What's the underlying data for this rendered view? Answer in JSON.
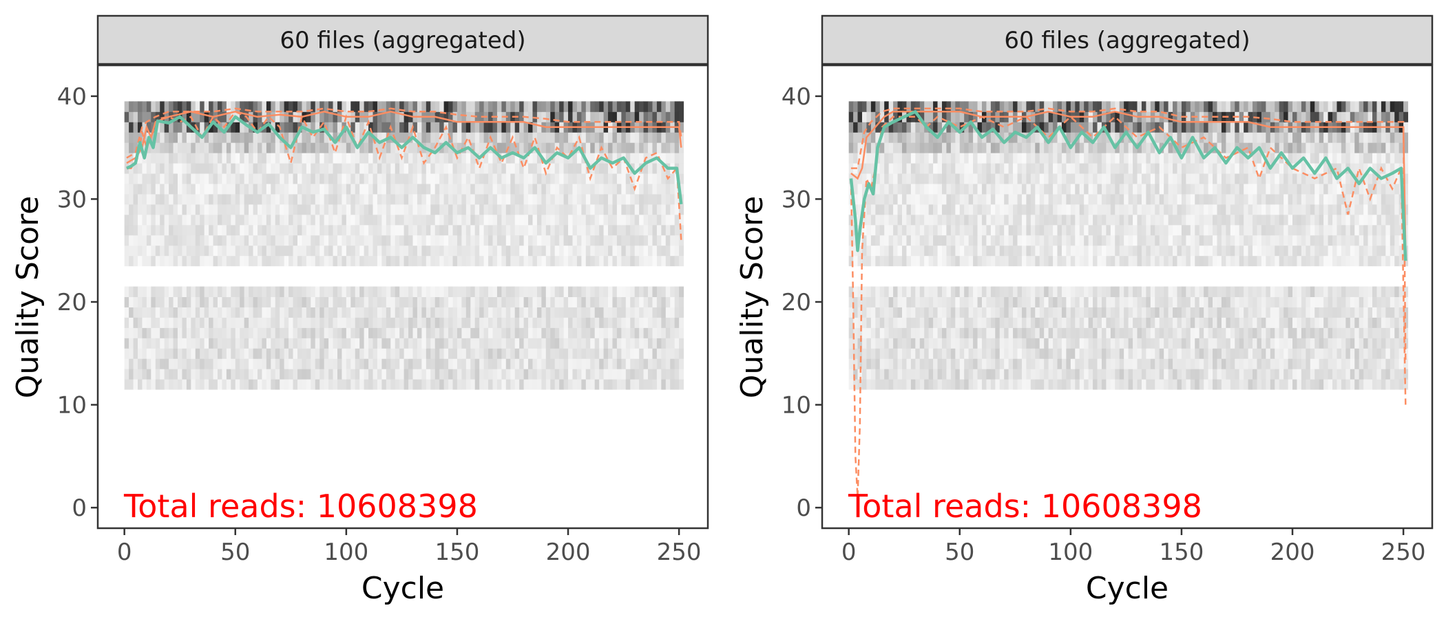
{
  "figure": {
    "background": "#ffffff",
    "strip_fill": "#d9d9d9",
    "frame_color": "#333333",
    "mean_color": "#66c2a5",
    "quantile_color": "#fc8d62",
    "annotation_color": "#ff0000"
  },
  "chart_data": [
    {
      "type": "line",
      "facet_label": "60 files (aggregated)",
      "xlabel": "Cycle",
      "ylabel": "Quality Score",
      "xlim": [
        -12,
        263
      ],
      "ylim": [
        -2,
        43
      ],
      "x_ticks": [
        0,
        50,
        100,
        150,
        200,
        250
      ],
      "y_ticks": [
        0,
        10,
        20,
        30,
        40
      ],
      "grid": false,
      "annotation": "Total reads: 10608398",
      "background_heatmap": {
        "x_range": [
          1,
          251
        ],
        "description_value": "density tiles",
        "bands": [
          [
            23.5,
            39.5
          ],
          [
            11.5,
            21.5
          ]
        ]
      },
      "mean_profile": [
        [
          1,
          33
        ],
        [
          3,
          33.2
        ],
        [
          5,
          33.5
        ],
        [
          7,
          35.5
        ],
        [
          9,
          34
        ],
        [
          11,
          36
        ],
        [
          13,
          35
        ],
        [
          15,
          37.6
        ],
        [
          20,
          37.4
        ],
        [
          25,
          38
        ],
        [
          30,
          37
        ],
        [
          35,
          36
        ],
        [
          40,
          37.5
        ],
        [
          45,
          36.5
        ],
        [
          50,
          38
        ],
        [
          55,
          37.2
        ],
        [
          60,
          36.5
        ],
        [
          65,
          37.3
        ],
        [
          70,
          36
        ],
        [
          75,
          35
        ],
        [
          80,
          37
        ],
        [
          85,
          36.5
        ],
        [
          90,
          36.8
        ],
        [
          95,
          35.5
        ],
        [
          100,
          37
        ],
        [
          105,
          35
        ],
        [
          110,
          36.5
        ],
        [
          115,
          35.5
        ],
        [
          120,
          36
        ],
        [
          125,
          35
        ],
        [
          130,
          36
        ],
        [
          135,
          35
        ],
        [
          140,
          34.5
        ],
        [
          145,
          35.5
        ],
        [
          150,
          34.5
        ],
        [
          155,
          35
        ],
        [
          160,
          34
        ],
        [
          165,
          35
        ],
        [
          170,
          34
        ],
        [
          175,
          34.5
        ],
        [
          180,
          34
        ],
        [
          185,
          35
        ],
        [
          190,
          33.5
        ],
        [
          195,
          34.5
        ],
        [
          200,
          34
        ],
        [
          205,
          35
        ],
        [
          210,
          33
        ],
        [
          215,
          34
        ],
        [
          220,
          33.5
        ],
        [
          225,
          34
        ],
        [
          230,
          32.5
        ],
        [
          235,
          33.5
        ],
        [
          240,
          34
        ],
        [
          245,
          33
        ],
        [
          249,
          33
        ],
        [
          251,
          29.5
        ]
      ],
      "median_profile": [
        [
          1,
          33.5
        ],
        [
          5,
          34
        ],
        [
          8,
          35
        ],
        [
          10,
          37
        ],
        [
          12,
          36
        ],
        [
          14,
          37.5
        ],
        [
          20,
          38
        ],
        [
          30,
          38.5
        ],
        [
          40,
          38
        ],
        [
          50,
          38.5
        ],
        [
          60,
          38
        ],
        [
          70,
          38.2
        ],
        [
          80,
          38
        ],
        [
          90,
          38.5
        ],
        [
          100,
          38
        ],
        [
          110,
          38
        ],
        [
          120,
          38.5
        ],
        [
          130,
          38
        ],
        [
          140,
          38
        ],
        [
          150,
          37.5
        ],
        [
          160,
          37.5
        ],
        [
          170,
          37.5
        ],
        [
          180,
          37.5
        ],
        [
          190,
          37
        ],
        [
          200,
          37
        ],
        [
          210,
          37
        ],
        [
          220,
          37
        ],
        [
          230,
          37
        ],
        [
          240,
          37
        ],
        [
          250,
          37
        ],
        [
          251,
          35
        ]
      ],
      "quartile_lower_profile": [
        [
          1,
          33
        ],
        [
          3,
          33
        ],
        [
          6,
          34
        ],
        [
          8,
          36.5
        ],
        [
          10,
          35
        ],
        [
          12,
          36
        ],
        [
          15,
          37.8
        ],
        [
          20,
          38
        ],
        [
          25,
          37.5
        ],
        [
          30,
          38
        ],
        [
          35,
          36
        ],
        [
          40,
          38
        ],
        [
          45,
          37
        ],
        [
          50,
          38.5
        ],
        [
          55,
          38
        ],
        [
          60,
          36.5
        ],
        [
          65,
          38
        ],
        [
          70,
          37
        ],
        [
          75,
          33.5
        ],
        [
          80,
          38
        ],
        [
          85,
          36
        ],
        [
          90,
          37.5
        ],
        [
          95,
          34.5
        ],
        [
          100,
          38
        ],
        [
          105,
          35
        ],
        [
          110,
          37.5
        ],
        [
          115,
          34
        ],
        [
          120,
          37
        ],
        [
          125,
          34
        ],
        [
          130,
          37
        ],
        [
          135,
          33.5
        ],
        [
          140,
          35
        ],
        [
          145,
          37
        ],
        [
          150,
          34
        ],
        [
          155,
          36
        ],
        [
          160,
          33
        ],
        [
          165,
          36
        ],
        [
          170,
          33.5
        ],
        [
          175,
          36
        ],
        [
          180,
          33
        ],
        [
          185,
          36
        ],
        [
          190,
          32.5
        ],
        [
          195,
          35
        ],
        [
          200,
          34
        ],
        [
          205,
          36
        ],
        [
          210,
          32
        ],
        [
          215,
          35
        ],
        [
          220,
          33
        ],
        [
          225,
          34
        ],
        [
          230,
          31
        ],
        [
          235,
          34
        ],
        [
          240,
          34.5
        ],
        [
          245,
          32
        ],
        [
          249,
          33
        ],
        [
          251,
          26
        ]
      ],
      "quartile_upper_profile": [
        [
          1,
          34
        ],
        [
          5,
          34.5
        ],
        [
          8,
          37
        ],
        [
          10,
          37.5
        ],
        [
          14,
          38
        ],
        [
          20,
          38.5
        ],
        [
          30,
          38.5
        ],
        [
          40,
          38.5
        ],
        [
          50,
          38.8
        ],
        [
          60,
          38.5
        ],
        [
          70,
          38.5
        ],
        [
          80,
          38.5
        ],
        [
          90,
          38.8
        ],
        [
          100,
          38.5
        ],
        [
          110,
          38.5
        ],
        [
          120,
          38.8
        ],
        [
          130,
          38.5
        ],
        [
          140,
          38.5
        ],
        [
          150,
          38.2
        ],
        [
          160,
          38
        ],
        [
          170,
          38
        ],
        [
          180,
          38
        ],
        [
          190,
          37.8
        ],
        [
          200,
          37.5
        ],
        [
          210,
          37.5
        ],
        [
          220,
          37.5
        ],
        [
          230,
          37.5
        ],
        [
          240,
          37.5
        ],
        [
          250,
          37.5
        ],
        [
          251,
          36
        ]
      ]
    },
    {
      "type": "line",
      "facet_label": "60 files (aggregated)",
      "xlabel": "Cycle",
      "ylabel": "Quality Score",
      "xlim": [
        -12,
        263
      ],
      "ylim": [
        -2,
        43
      ],
      "x_ticks": [
        0,
        50,
        100,
        150,
        200,
        250
      ],
      "y_ticks": [
        0,
        10,
        20,
        30,
        40
      ],
      "grid": false,
      "annotation": "Total reads: 10608398",
      "background_heatmap": {
        "x_range": [
          1,
          251
        ],
        "bands": [
          [
            23.5,
            39.5
          ],
          [
            11.5,
            21.5
          ]
        ]
      },
      "mean_profile": [
        [
          1,
          32
        ],
        [
          3,
          28
        ],
        [
          4,
          25
        ],
        [
          5,
          27
        ],
        [
          7,
          30
        ],
        [
          9,
          31.5
        ],
        [
          11,
          30.5
        ],
        [
          13,
          35
        ],
        [
          16,
          37
        ],
        [
          20,
          37.5
        ],
        [
          25,
          38
        ],
        [
          30,
          38.5
        ],
        [
          35,
          37
        ],
        [
          40,
          36
        ],
        [
          45,
          37.5
        ],
        [
          50,
          36.5
        ],
        [
          55,
          37.5
        ],
        [
          60,
          36
        ],
        [
          65,
          36.8
        ],
        [
          70,
          35.5
        ],
        [
          75,
          36.5
        ],
        [
          80,
          36
        ],
        [
          85,
          37
        ],
        [
          90,
          35.5
        ],
        [
          95,
          37
        ],
        [
          100,
          35
        ],
        [
          105,
          36.5
        ],
        [
          110,
          35.5
        ],
        [
          115,
          37
        ],
        [
          120,
          35
        ],
        [
          125,
          36.5
        ],
        [
          130,
          35
        ],
        [
          135,
          36.5
        ],
        [
          140,
          34.5
        ],
        [
          145,
          36
        ],
        [
          150,
          34
        ],
        [
          155,
          36
        ],
        [
          160,
          34
        ],
        [
          165,
          35
        ],
        [
          170,
          33.5
        ],
        [
          175,
          35
        ],
        [
          180,
          34
        ],
        [
          185,
          35
        ],
        [
          190,
          33
        ],
        [
          195,
          34.5
        ],
        [
          200,
          33
        ],
        [
          205,
          34
        ],
        [
          210,
          32.5
        ],
        [
          215,
          34
        ],
        [
          220,
          32
        ],
        [
          225,
          33
        ],
        [
          230,
          31.5
        ],
        [
          235,
          33
        ],
        [
          240,
          32
        ],
        [
          245,
          32.5
        ],
        [
          249,
          33
        ],
        [
          251,
          24
        ]
      ],
      "median_profile": [
        [
          1,
          32.5
        ],
        [
          4,
          32
        ],
        [
          6,
          33
        ],
        [
          8,
          36
        ],
        [
          12,
          37
        ],
        [
          16,
          38
        ],
        [
          20,
          38.5
        ],
        [
          30,
          38.5
        ],
        [
          40,
          38.5
        ],
        [
          50,
          38.5
        ],
        [
          60,
          38
        ],
        [
          70,
          38
        ],
        [
          80,
          38
        ],
        [
          90,
          38.5
        ],
        [
          100,
          38
        ],
        [
          110,
          38
        ],
        [
          120,
          38.5
        ],
        [
          130,
          38
        ],
        [
          140,
          38
        ],
        [
          150,
          37.5
        ],
        [
          160,
          37.5
        ],
        [
          170,
          37.5
        ],
        [
          180,
          37.5
        ],
        [
          190,
          37
        ],
        [
          200,
          37
        ],
        [
          210,
          37
        ],
        [
          220,
          37
        ],
        [
          230,
          37
        ],
        [
          240,
          37
        ],
        [
          250,
          37
        ],
        [
          251,
          25
        ]
      ],
      "quartile_lower_profile": [
        [
          1,
          32
        ],
        [
          2,
          20
        ],
        [
          3,
          5
        ],
        [
          4,
          1
        ],
        [
          5,
          8
        ],
        [
          6,
          25
        ],
        [
          8,
          32
        ],
        [
          10,
          31
        ],
        [
          12,
          33
        ],
        [
          15,
          37
        ],
        [
          20,
          38
        ],
        [
          30,
          38
        ],
        [
          35,
          37
        ],
        [
          40,
          38
        ],
        [
          50,
          37
        ],
        [
          60,
          38
        ],
        [
          70,
          37
        ],
        [
          80,
          38
        ],
        [
          90,
          36
        ],
        [
          100,
          38
        ],
        [
          110,
          36
        ],
        [
          120,
          38
        ],
        [
          130,
          36
        ],
        [
          140,
          37
        ],
        [
          150,
          35
        ],
        [
          160,
          36
        ],
        [
          170,
          34
        ],
        [
          180,
          35
        ],
        [
          185,
          32
        ],
        [
          190,
          35
        ],
        [
          200,
          33
        ],
        [
          210,
          32
        ],
        [
          220,
          33
        ],
        [
          225,
          28.5
        ],
        [
          230,
          33
        ],
        [
          235,
          30
        ],
        [
          240,
          33
        ],
        [
          245,
          31
        ],
        [
          249,
          33
        ],
        [
          251,
          10
        ]
      ],
      "quartile_upper_profile": [
        [
          1,
          33
        ],
        [
          4,
          33
        ],
        [
          7,
          36.5
        ],
        [
          10,
          37.5
        ],
        [
          15,
          38.5
        ],
        [
          20,
          38.8
        ],
        [
          30,
          38.8
        ],
        [
          40,
          38.8
        ],
        [
          50,
          38.8
        ],
        [
          60,
          38.5
        ],
        [
          70,
          38.5
        ],
        [
          80,
          38.5
        ],
        [
          90,
          38.8
        ],
        [
          100,
          38.5
        ],
        [
          110,
          38.5
        ],
        [
          120,
          38.8
        ],
        [
          130,
          38.5
        ],
        [
          140,
          38.5
        ],
        [
          150,
          38
        ],
        [
          160,
          38
        ],
        [
          170,
          38
        ],
        [
          180,
          38
        ],
        [
          190,
          37.8
        ],
        [
          200,
          37.5
        ],
        [
          210,
          37.5
        ],
        [
          220,
          37.5
        ],
        [
          230,
          37.5
        ],
        [
          240,
          37.5
        ],
        [
          250,
          37.5
        ],
        [
          251,
          14
        ]
      ]
    }
  ]
}
